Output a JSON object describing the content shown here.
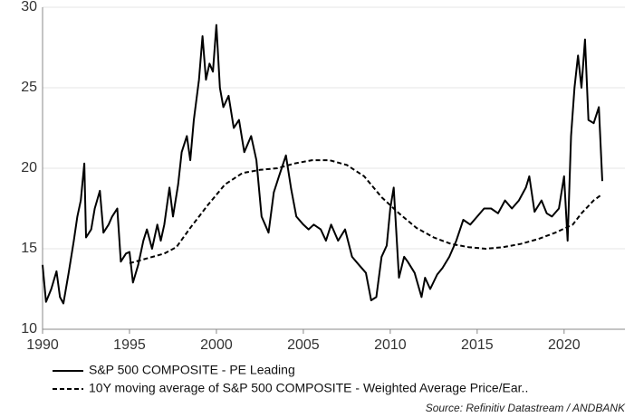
{
  "chart_data": {
    "type": "line",
    "xlim": [
      1990,
      2023.5
    ],
    "xticks": [
      1990,
      1995,
      2000,
      2005,
      2010,
      2015,
      2020
    ],
    "ylim": [
      10,
      30
    ],
    "yticks": [
      10,
      15,
      20,
      25,
      30
    ],
    "grid": true,
    "source": "Source: Refinitiv Datastream / ANDBANK",
    "series": [
      {
        "name": "S&P 500 COMPOSITE - PE Leading",
        "color": "#000000",
        "dash": "solid",
        "x": [
          1990.0,
          1990.2,
          1990.5,
          1990.8,
          1991.0,
          1991.2,
          1991.5,
          1991.8,
          1992.0,
          1992.2,
          1992.4,
          1992.5,
          1992.8,
          1993.0,
          1993.3,
          1993.5,
          1993.8,
          1994.0,
          1994.3,
          1994.5,
          1994.8,
          1995.0,
          1995.2,
          1995.5,
          1995.8,
          1996.0,
          1996.3,
          1996.6,
          1996.8,
          1997.0,
          1997.3,
          1997.5,
          1997.8,
          1998.0,
          1998.3,
          1998.5,
          1998.7,
          1999.0,
          1999.2,
          1999.4,
          1999.6,
          1999.8,
          2000.0,
          2000.2,
          2000.4,
          2000.7,
          2001.0,
          2001.3,
          2001.6,
          2002.0,
          2002.3,
          2002.6,
          2002.8,
          2003.0,
          2003.3,
          2003.6,
          2004.0,
          2004.3,
          2004.6,
          2005.0,
          2005.3,
          2005.6,
          2006.0,
          2006.3,
          2006.6,
          2007.0,
          2007.4,
          2007.8,
          2008.2,
          2008.6,
          2008.9,
          2009.2,
          2009.5,
          2009.8,
          2010.0,
          2010.2,
          2010.5,
          2010.8,
          2011.0,
          2011.4,
          2011.8,
          2012.0,
          2012.3,
          2012.7,
          2013.0,
          2013.4,
          2013.8,
          2014.2,
          2014.6,
          2015.0,
          2015.4,
          2015.8,
          2016.2,
          2016.6,
          2017.0,
          2017.4,
          2017.8,
          2018.0,
          2018.3,
          2018.7,
          2019.0,
          2019.3,
          2019.7,
          2020.0,
          2020.2,
          2020.4,
          2020.6,
          2020.8,
          2021.0,
          2021.2,
          2021.4,
          2021.7,
          2022.0,
          2022.2
        ],
        "values": [
          14,
          11.7,
          12.5,
          13.6,
          12,
          11.6,
          13.5,
          15.5,
          17,
          18,
          20.3,
          15.7,
          16.2,
          17.5,
          18.6,
          16,
          16.5,
          17,
          17.5,
          14.2,
          14.7,
          14.8,
          12.9,
          14,
          15.5,
          16.2,
          15,
          16.5,
          15.5,
          16.5,
          18.8,
          17,
          19,
          21,
          22,
          20.5,
          23,
          25.5,
          28.2,
          25.5,
          26.5,
          26,
          28.9,
          25,
          23.8,
          24.5,
          22.5,
          23,
          21,
          22,
          20.5,
          17,
          16.5,
          16,
          18.5,
          19.5,
          20.8,
          18.7,
          17,
          16.5,
          16.2,
          16.5,
          16.2,
          15.5,
          16.5,
          15.5,
          16.2,
          14.5,
          14,
          13.5,
          11.8,
          12,
          14.5,
          15.2,
          17.5,
          18.8,
          13.2,
          14.5,
          14.2,
          13.5,
          12,
          13.2,
          12.5,
          13.4,
          13.8,
          14.5,
          15.5,
          16.8,
          16.5,
          17,
          17.5,
          17.5,
          17.2,
          18,
          17.5,
          18,
          18.8,
          19.5,
          17.3,
          18,
          17.2,
          17,
          17.5,
          19.5,
          15.5,
          22,
          25,
          27,
          25,
          28,
          23,
          22.8,
          23.8,
          19.2
        ]
      },
      {
        "name": "10Y moving average of S&P 500 COMPOSITE - Weighted Average Price/Ear..",
        "color": "#000000",
        "dash": "dashed",
        "x": [
          1995,
          1996,
          1997,
          1997.7,
          1998.5,
          1999.5,
          2000.5,
          2001.5,
          2002.5,
          2003.5,
          2004.5,
          2005.5,
          2006.5,
          2007.5,
          2008.5,
          2009.5,
          2010.5,
          2011.5,
          2012.5,
          2013.5,
          2014.5,
          2015.5,
          2016.5,
          2017.5,
          2018.5,
          2019.5,
          2020.5,
          2021,
          2021.7,
          2022.2
        ],
        "values": [
          14.1,
          14.4,
          14.7,
          15.1,
          16.3,
          17.7,
          19,
          19.7,
          19.9,
          20,
          20.3,
          20.5,
          20.5,
          20.2,
          19.5,
          18.2,
          17.2,
          16.3,
          15.7,
          15.3,
          15.1,
          15,
          15.1,
          15.3,
          15.6,
          16,
          16.5,
          17.2,
          18,
          18.4
        ]
      }
    ]
  }
}
